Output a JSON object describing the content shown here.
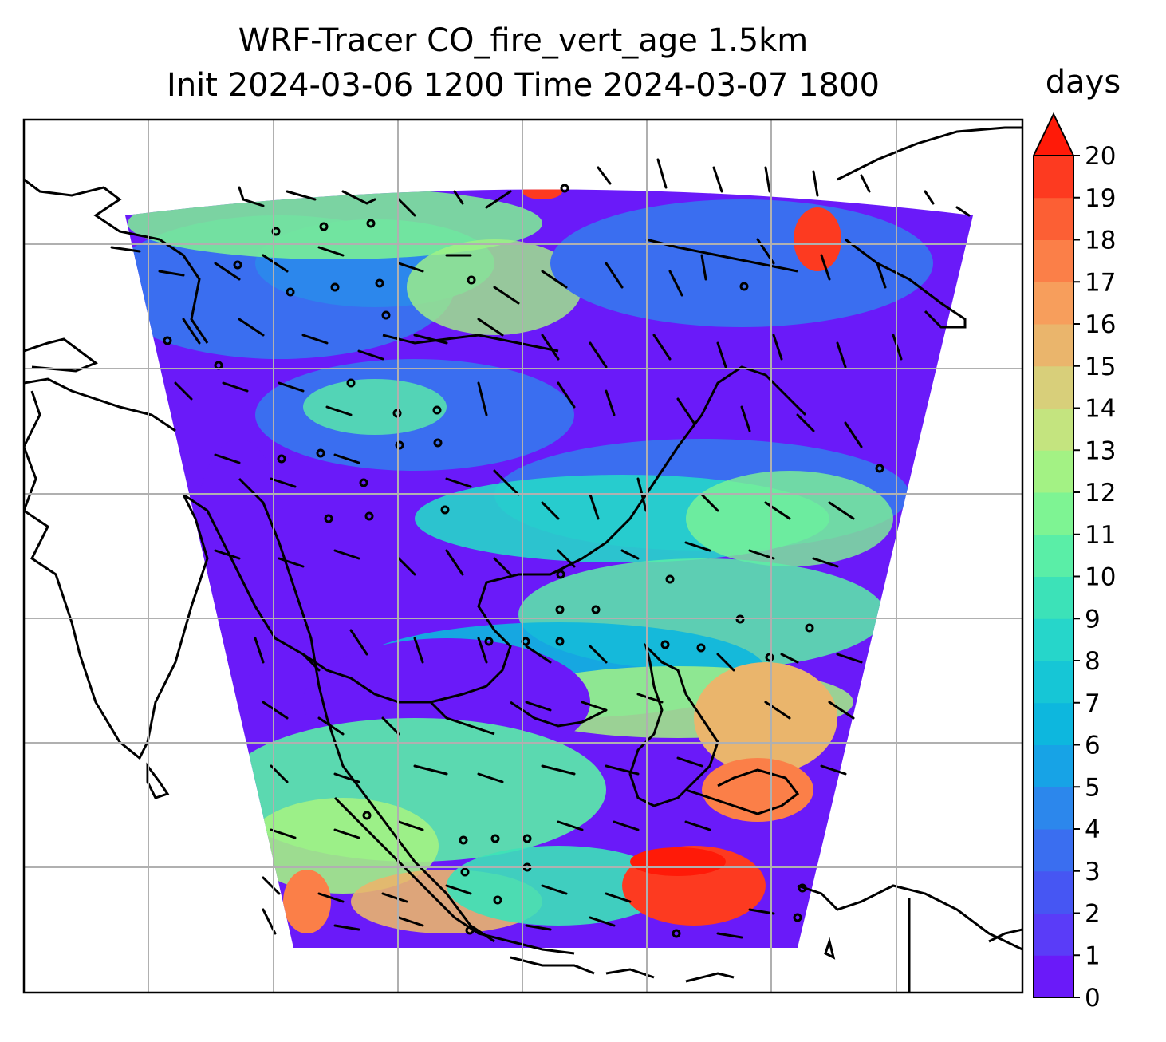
{
  "title_line1": "WRF-Tracer CO_fire_vert_age 1.5km",
  "title_line2": "Init 2024-03-06 1200 Time 2024-03-07 1800",
  "colorbar": {
    "label": "days",
    "ticks": [
      "0",
      "1",
      "2",
      "3",
      "4",
      "5",
      "6",
      "7",
      "8",
      "9",
      "10",
      "11",
      "12",
      "13",
      "14",
      "15",
      "16",
      "17",
      "18",
      "19",
      "20"
    ],
    "colors": [
      "#6a1af9",
      "#5a3cf8",
      "#4656f3",
      "#3a6ef0",
      "#2c87ec",
      "#17a3e6",
      "#0db7de",
      "#16c6d6",
      "#26d6ca",
      "#3ce2b8",
      "#5aeea7",
      "#7ef493",
      "#a3f284",
      "#c4e47f",
      "#d8cf7a",
      "#eab56c",
      "#f79e5c",
      "#fb7f48",
      "#fc5f34",
      "#fd3a20"
    ],
    "extend_color": "#ff1a08"
  },
  "map": {
    "background": "#ffffff",
    "grid_color": "#b0b0b0",
    "coastline_color": "#000000"
  }
}
